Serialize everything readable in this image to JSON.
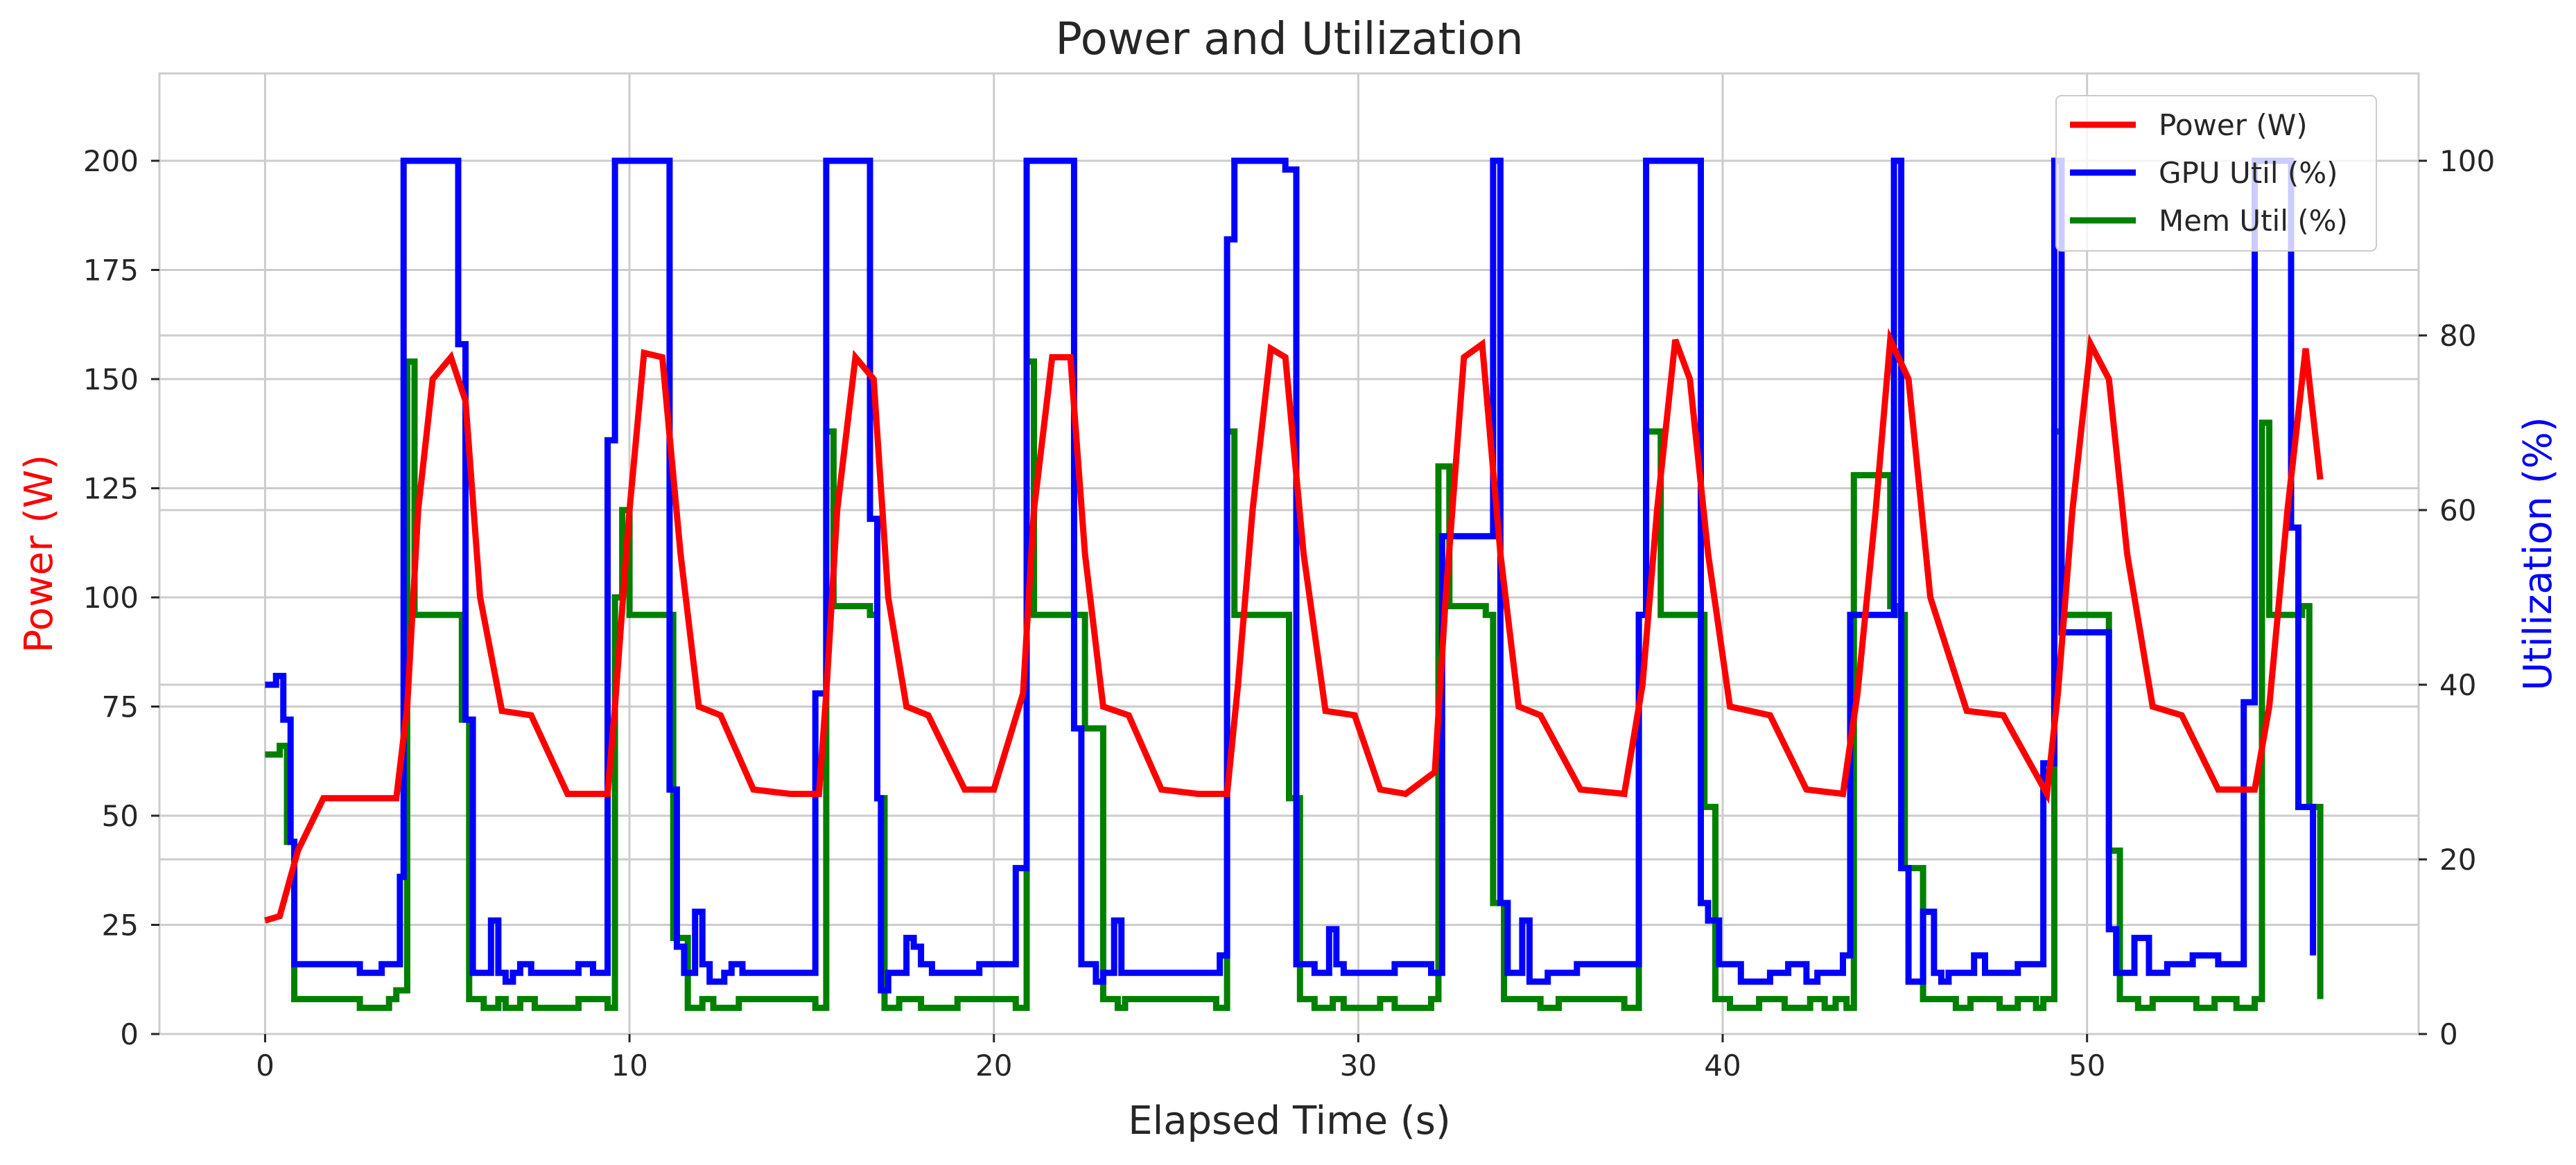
{
  "chart_data": {
    "type": "line",
    "title": "Power and Utilization",
    "xlabel": "Elapsed Time (s)",
    "ylabel": "Power (W)",
    "y2label": "Utilization (%)",
    "xlim": [
      -2.9,
      59.1
    ],
    "ylim": [
      0,
      220
    ],
    "y2lim": [
      0,
      110
    ],
    "xticks": [
      0,
      10,
      20,
      30,
      40,
      50
    ],
    "yticks": [
      0,
      25,
      50,
      75,
      100,
      125,
      150,
      175,
      200
    ],
    "y2ticks": [
      0,
      20,
      40,
      60,
      80,
      100
    ],
    "grid": true,
    "legend_position": "top-right",
    "colors": {
      "power": "#ff0000",
      "gpu": "#0000ff",
      "mem": "#008000",
      "ylabel": "#ff0000",
      "y2label": "#0000ff"
    },
    "series": [
      {
        "name": "Power (W)",
        "axis": "left",
        "step": false,
        "x": [
          0,
          0.4,
          0.9,
          1.6,
          3.6,
          3.9,
          4.2,
          4.6,
          5.1,
          5.5,
          5.9,
          6.5,
          7.3,
          8.3,
          9.4,
          9.6,
          10.0,
          10.4,
          10.9,
          11.4,
          11.9,
          12.5,
          13.4,
          14.4,
          15.2,
          15.4,
          15.7,
          16.2,
          16.7,
          17.1,
          17.6,
          18.2,
          19.2,
          20.0,
          20.8,
          21.1,
          21.6,
          22.1,
          22.5,
          23.0,
          23.7,
          24.6,
          25.6,
          26.4,
          26.7,
          27.1,
          27.6,
          28.0,
          28.5,
          29.1,
          29.9,
          30.6,
          31.3,
          32.1,
          32.4,
          32.9,
          33.4,
          33.9,
          34.4,
          35.0,
          36.1,
          37.3,
          37.8,
          38.2,
          38.7,
          39.1,
          39.6,
          40.2,
          41.3,
          42.3,
          43.3,
          43.7,
          44.2,
          44.6,
          45.1,
          45.7,
          46.7,
          47.7,
          48.9,
          49.2,
          49.6,
          50.1,
          50.6,
          51.1,
          51.8,
          52.6,
          53.6,
          54.6,
          55.0,
          55.5,
          56.0,
          56.4
        ],
        "y": [
          26,
          27,
          42,
          54,
          54,
          75,
          120,
          150,
          155,
          145,
          100,
          74,
          73,
          55,
          55,
          75,
          120,
          156,
          155,
          110,
          75,
          73,
          56,
          55,
          55,
          78,
          120,
          155,
          150,
          100,
          75,
          73,
          56,
          56,
          78,
          120,
          155,
          155,
          110,
          75,
          73,
          56,
          55,
          55,
          80,
          120,
          157,
          155,
          110,
          74,
          73,
          56,
          55,
          60,
          100,
          155,
          158,
          110,
          75,
          73,
          56,
          55,
          80,
          120,
          159,
          150,
          110,
          75,
          73,
          56,
          55,
          78,
          120,
          159,
          150,
          100,
          74,
          73,
          55,
          78,
          120,
          158,
          150,
          110,
          75,
          73,
          56,
          56,
          75,
          120,
          157,
          127
        ]
      },
      {
        "name": "GPU Util (%)",
        "axis": "right",
        "step": true,
        "x": [
          0,
          0.3,
          0.5,
          0.7,
          0.8,
          2.6,
          3.2,
          3.7,
          3.8,
          5.3,
          5.5,
          5.7,
          6.2,
          6.4,
          6.6,
          6.8,
          7.0,
          7.3,
          8.6,
          9.0,
          9.4,
          9.6,
          9.8,
          11.1,
          11.3,
          11.5,
          11.8,
          12.0,
          12.2,
          12.6,
          12.8,
          13.1,
          15.1,
          15.4,
          16.6,
          16.8,
          16.9,
          17.1,
          17.6,
          17.8,
          18.0,
          18.3,
          19.6,
          20.6,
          20.9,
          22.2,
          22.4,
          22.8,
          23.0,
          23.3,
          23.5,
          26.2,
          26.4,
          26.6,
          27.4,
          28.0,
          28.3,
          28.8,
          29.2,
          29.4,
          29.6,
          31.0,
          32.0,
          32.3,
          33.7,
          33.9,
          34.1,
          34.5,
          34.7,
          35.2,
          36.0,
          37.7,
          37.9,
          38.6,
          39.4,
          39.6,
          39.9,
          40.5,
          41.3,
          41.8,
          42.3,
          42.6,
          43.3,
          43.5,
          44.7,
          44.9,
          45.1,
          45.5,
          45.8,
          46.0,
          46.2,
          46.9,
          47.2,
          48.1,
          48.8,
          49.1,
          49.3,
          50.6,
          50.8,
          51.3,
          51.7,
          52.2,
          52.9,
          53.6,
          54.3,
          54.6,
          54.8,
          55.6,
          55.8,
          56.2
        ],
        "y": [
          40,
          41,
          36,
          22,
          8,
          7,
          8,
          18,
          100,
          79,
          36,
          7,
          13,
          7,
          6,
          7,
          8,
          7,
          8,
          7,
          68,
          100,
          100,
          28,
          10,
          7,
          14,
          8,
          6,
          7,
          8,
          7,
          39,
          100,
          59,
          27,
          5,
          7,
          11,
          10,
          8,
          7,
          8,
          19,
          100,
          35,
          8,
          6,
          7,
          13,
          7,
          9,
          91,
          100,
          100,
          99,
          8,
          7,
          12,
          8,
          7,
          8,
          7,
          57,
          100,
          15,
          7,
          13,
          6,
          7,
          8,
          48,
          100,
          100,
          15,
          13,
          8,
          6,
          7,
          8,
          6,
          7,
          9,
          48,
          100,
          19,
          6,
          14,
          7,
          6,
          7,
          9,
          7,
          8,
          31,
          100,
          46,
          12,
          7,
          11,
          7,
          8,
          9,
          8,
          38,
          100,
          100,
          58,
          26,
          9
        ]
      },
      {
        "name": "Mem Util (%)",
        "axis": "right",
        "step": true,
        "x": [
          0,
          0.4,
          0.6,
          0.8,
          2.6,
          3.4,
          3.6,
          3.9,
          4.1,
          5.2,
          5.4,
          5.6,
          6.0,
          6.4,
          6.6,
          7.0,
          7.4,
          8.6,
          9.4,
          9.6,
          9.8,
          10.0,
          11.0,
          11.2,
          11.6,
          12.0,
          12.3,
          13.0,
          15.1,
          15.4,
          15.6,
          16.6,
          16.8,
          17.0,
          17.4,
          18.0,
          19.0,
          20.6,
          20.9,
          21.1,
          22.2,
          22.5,
          23.0,
          23.4,
          23.6,
          26.1,
          26.4,
          26.6,
          27.9,
          28.1,
          28.4,
          28.8,
          29.3,
          29.6,
          30.6,
          31.0,
          32.0,
          32.2,
          32.5,
          33.5,
          33.7,
          34.0,
          35.0,
          35.5,
          37.3,
          37.7,
          37.9,
          38.3,
          39.1,
          39.5,
          39.8,
          40.2,
          41.0,
          41.7,
          42.4,
          42.8,
          43.1,
          43.4,
          43.6,
          44.6,
          44.8,
          45.0,
          45.5,
          46.4,
          46.8,
          47.6,
          48.1,
          48.6,
          48.8,
          49.1,
          49.3,
          50.4,
          50.6,
          50.9,
          51.4,
          51.8,
          53.0,
          53.5,
          54.1,
          54.6,
          54.8,
          55.0,
          55.9,
          56.1,
          56.4
        ],
        "y": [
          32,
          33,
          22,
          4,
          3,
          4,
          5,
          77,
          48,
          48,
          36,
          4,
          3,
          4,
          3,
          4,
          3,
          4,
          3,
          50,
          60,
          48,
          48,
          11,
          3,
          4,
          3,
          4,
          3,
          69,
          49,
          48,
          27,
          3,
          4,
          3,
          4,
          3,
          77,
          48,
          48,
          35,
          4,
          3,
          4,
          3,
          69,
          48,
          48,
          27,
          4,
          3,
          4,
          3,
          4,
          3,
          4,
          65,
          49,
          48,
          15,
          4,
          3,
          4,
          3,
          48,
          69,
          48,
          48,
          26,
          4,
          3,
          4,
          3,
          4,
          3,
          4,
          3,
          64,
          49,
          48,
          19,
          4,
          3,
          4,
          3,
          4,
          3,
          4,
          69,
          48,
          48,
          21,
          4,
          3,
          4,
          3,
          4,
          3,
          4,
          70,
          48,
          49,
          26,
          4
        ]
      }
    ]
  }
}
